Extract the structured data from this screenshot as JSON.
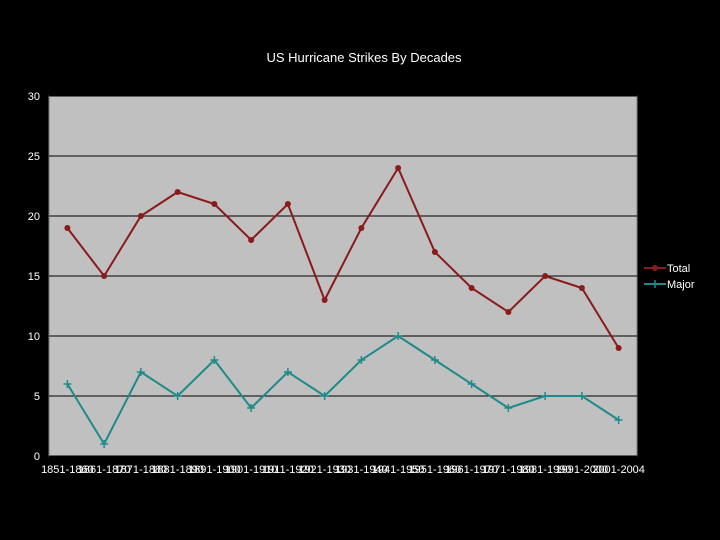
{
  "chart_data": {
    "type": "line",
    "title": "US Hurricane Strikes By Decades",
    "xlabel": "",
    "ylabel": "",
    "ylim": [
      0,
      30
    ],
    "yticks": [
      0,
      5,
      10,
      15,
      20,
      25,
      30
    ],
    "grid": true,
    "legend_position": "right",
    "categories": [
      "1851-1860",
      "1861-1870",
      "1871-1880",
      "1881-1890",
      "1891-1900",
      "1901-1910",
      "1911-1920",
      "1921-1930",
      "1931-1940",
      "1941-1950",
      "1951-1960",
      "1961-1970",
      "1971-1980",
      "1981-1990",
      "1991-2000",
      "2001-2004"
    ],
    "series": [
      {
        "name": "Total",
        "color": "#8b1a1a",
        "marker": "circle",
        "values": [
          19,
          15,
          20,
          22,
          21,
          18,
          21,
          13,
          19,
          24,
          17,
          14,
          12,
          15,
          14,
          9
        ]
      },
      {
        "name": "Major",
        "color": "#1f8a8a",
        "marker": "plus",
        "values": [
          6,
          1,
          7,
          5,
          8,
          4,
          7,
          5,
          8,
          10,
          8,
          6,
          4,
          5,
          5,
          3
        ]
      }
    ]
  }
}
